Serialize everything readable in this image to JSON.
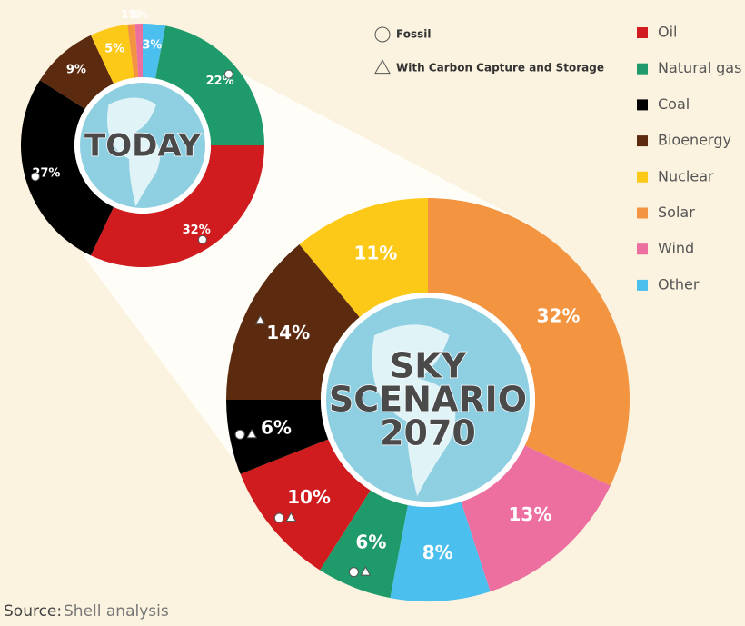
{
  "legend": {
    "categories": [
      "Oil",
      "Natural gas",
      "Coal",
      "Bioenergy",
      "Nuclear",
      "Solar",
      "Wind",
      "Other"
    ],
    "colors": [
      "#d01c1f",
      "#1e9a6b",
      "#000000",
      "#5c2a0e",
      "#fcc918",
      "#f39441",
      "#ec6fa0",
      "#4bbfee"
    ]
  },
  "marker_key": [
    {
      "symbol": "circle",
      "label": "Fossil"
    },
    {
      "symbol": "triangle",
      "label": "With Carbon Capture and Storage"
    }
  ],
  "chart_data": [
    {
      "type": "pie",
      "title_lines": [
        "TODAY"
      ],
      "values": [
        32,
        22,
        27,
        9,
        5,
        1,
        1,
        3
      ],
      "value_labels": [
        "32%",
        "22%",
        "27%",
        "9%",
        "5%",
        "1%",
        "1%",
        "3%"
      ],
      "order": [
        7,
        1,
        0,
        2,
        3,
        4,
        5,
        6
      ],
      "markers": [
        [
          "circle"
        ],
        [
          "circle"
        ],
        [
          "circle"
        ],
        [],
        [],
        [],
        [],
        []
      ]
    },
    {
      "type": "pie",
      "title_lines": [
        "SKY",
        "SCENARIO",
        "2070"
      ],
      "values": [
        10,
        6,
        6,
        14,
        11,
        32,
        13,
        8
      ],
      "value_labels": [
        "10%",
        "6%",
        "6%",
        "14%",
        "11%",
        "32%",
        "13%",
        "8%"
      ],
      "order": [
        5,
        6,
        7,
        1,
        0,
        2,
        3,
        4
      ],
      "markers": [
        [
          "circle",
          "triangle"
        ],
        [
          "circle",
          "triangle"
        ],
        [
          "circle",
          "triangle"
        ],
        [
          "triangle"
        ],
        [],
        [],
        [],
        []
      ]
    }
  ],
  "source": {
    "prefix": "Source:",
    "text": "Shell analysis"
  }
}
